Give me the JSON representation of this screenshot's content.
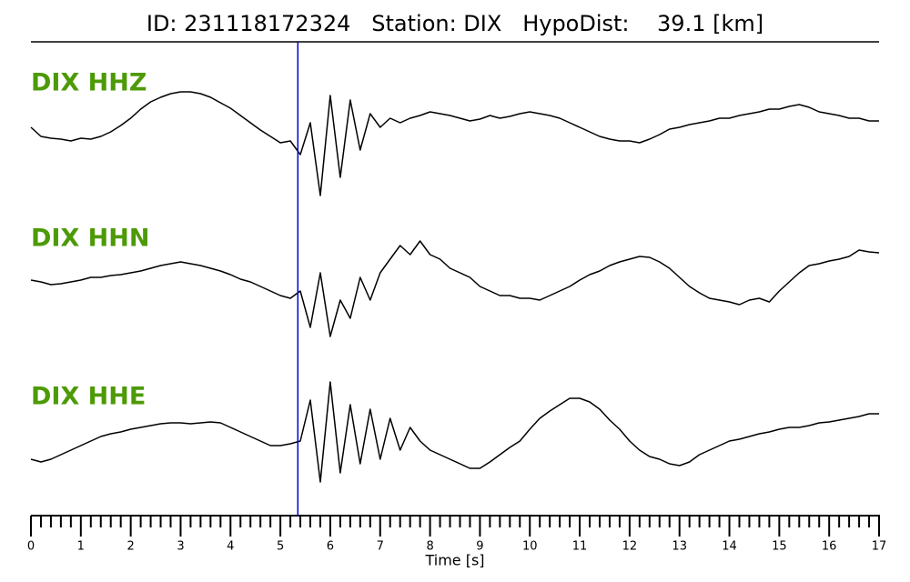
{
  "chart_data": {
    "type": "line",
    "title": "ID: 231118172324   Station: DIX   HypoDist:    39.1 [km]",
    "xlabel": "Time [s]",
    "xlim": [
      0,
      17
    ],
    "xticks": [
      0,
      1,
      2,
      3,
      4,
      5,
      6,
      7,
      8,
      9,
      10,
      11,
      12,
      13,
      14,
      15,
      16,
      17
    ],
    "xminorticks": [
      0.2,
      0.4,
      0.6,
      0.8,
      1.2,
      1.4,
      1.6,
      1.8,
      2.2,
      2.4,
      2.6,
      2.8,
      3.2,
      3.4,
      3.6,
      3.8,
      4.2,
      4.4,
      4.6,
      4.8,
      5.2,
      5.4,
      5.6,
      5.8,
      6.2,
      6.4,
      6.6,
      6.8,
      7.2,
      7.4,
      7.6,
      7.8,
      8.2,
      8.4,
      8.6,
      8.8,
      9.2,
      9.4,
      9.6,
      9.8,
      10.2,
      10.4,
      10.6,
      10.8,
      11.2,
      11.4,
      11.6,
      11.8,
      12.2,
      12.4,
      12.6,
      12.8,
      13.2,
      13.4,
      13.6,
      13.8,
      14.2,
      14.4,
      14.6,
      14.8,
      15.2,
      15.4,
      15.6,
      15.8,
      16.2,
      16.4,
      16.6,
      16.8
    ],
    "pick": {
      "time": 5.35,
      "color": "#0000cc"
    },
    "label_color": "#4d9a06",
    "x": [
      0,
      0.2,
      0.4,
      0.6,
      0.8,
      1,
      1.2,
      1.4,
      1.6,
      1.8,
      2,
      2.2,
      2.4,
      2.6,
      2.8,
      3,
      3.2,
      3.4,
      3.6,
      3.8,
      4,
      4.2,
      4.4,
      4.6,
      4.8,
      5,
      5.2,
      5.4,
      5.6,
      5.8,
      6,
      6.2,
      6.4,
      6.6,
      6.8,
      7,
      7.2,
      7.4,
      7.6,
      7.8,
      8,
      8.2,
      8.4,
      8.6,
      8.8,
      9,
      9.2,
      9.4,
      9.6,
      9.8,
      10,
      10.2,
      10.4,
      10.6,
      10.8,
      11,
      11.2,
      11.4,
      11.6,
      11.8,
      12,
      12.2,
      12.4,
      12.6,
      12.8,
      13,
      13.2,
      13.4,
      13.6,
      13.8,
      14,
      14.2,
      14.4,
      14.6,
      14.8,
      15,
      15.2,
      15.4,
      15.6,
      15.8,
      16,
      16.2,
      16.4,
      16.6,
      16.8,
      17
    ],
    "series": [
      {
        "name": "DIX HHZ",
        "color": "#000000",
        "ylim": [
          -80,
          80
        ],
        "values": [
          5,
          -5,
          -7,
          -8,
          -10,
          -7,
          -8,
          -5,
          0,
          7,
          15,
          25,
          33,
          38,
          42,
          44,
          44,
          42,
          38,
          32,
          26,
          18,
          10,
          2,
          -5,
          -12,
          -10,
          -25,
          10,
          -70,
          40,
          -50,
          35,
          -20,
          20,
          5,
          15,
          10,
          15,
          18,
          22,
          20,
          18,
          15,
          12,
          14,
          18,
          15,
          17,
          20,
          22,
          20,
          18,
          15,
          10,
          5,
          0,
          -5,
          -8,
          -10,
          -10,
          -12,
          -8,
          -3,
          3,
          5,
          8,
          10,
          12,
          15,
          15,
          18,
          20,
          22,
          25,
          25,
          28,
          30,
          27,
          22,
          20,
          18,
          15,
          15,
          12,
          12
        ]
      },
      {
        "name": "DIX HHN",
        "color": "#000000",
        "ylim": [
          -80,
          80
        ],
        "values": [
          2,
          0,
          -3,
          -2,
          0,
          2,
          5,
          5,
          7,
          8,
          10,
          12,
          15,
          18,
          20,
          22,
          20,
          18,
          15,
          12,
          8,
          3,
          0,
          -5,
          -10,
          -15,
          -18,
          -10,
          -50,
          10,
          -60,
          -20,
          -40,
          5,
          -20,
          10,
          25,
          40,
          30,
          45,
          30,
          25,
          15,
          10,
          5,
          -5,
          -10,
          -15,
          -15,
          -18,
          -18,
          -20,
          -15,
          -10,
          -5,
          2,
          8,
          12,
          18,
          22,
          25,
          28,
          27,
          22,
          15,
          5,
          -5,
          -12,
          -18,
          -20,
          -22,
          -25,
          -20,
          -18,
          -22,
          -10,
          0,
          10,
          18,
          20,
          23,
          25,
          28,
          35,
          33,
          32
        ]
      },
      {
        "name": "DIX HHE",
        "color": "#000000",
        "ylim": [
          -80,
          80
        ],
        "values": [
          -25,
          -28,
          -25,
          -20,
          -15,
          -10,
          -5,
          0,
          3,
          5,
          8,
          10,
          12,
          14,
          15,
          15,
          14,
          15,
          16,
          15,
          10,
          5,
          0,
          -5,
          -10,
          -10,
          -8,
          -5,
          40,
          -50,
          60,
          -40,
          35,
          -30,
          30,
          -25,
          20,
          -15,
          10,
          -5,
          -15,
          -20,
          -25,
          -30,
          -35,
          -35,
          -28,
          -20,
          -12,
          -5,
          8,
          20,
          28,
          35,
          42,
          42,
          38,
          30,
          18,
          8,
          -5,
          -15,
          -22,
          -25,
          -30,
          -32,
          -28,
          -20,
          -15,
          -10,
          -5,
          -3,
          0,
          3,
          5,
          8,
          10,
          10,
          12,
          15,
          16,
          18,
          20,
          22,
          25,
          25
        ]
      }
    ]
  }
}
